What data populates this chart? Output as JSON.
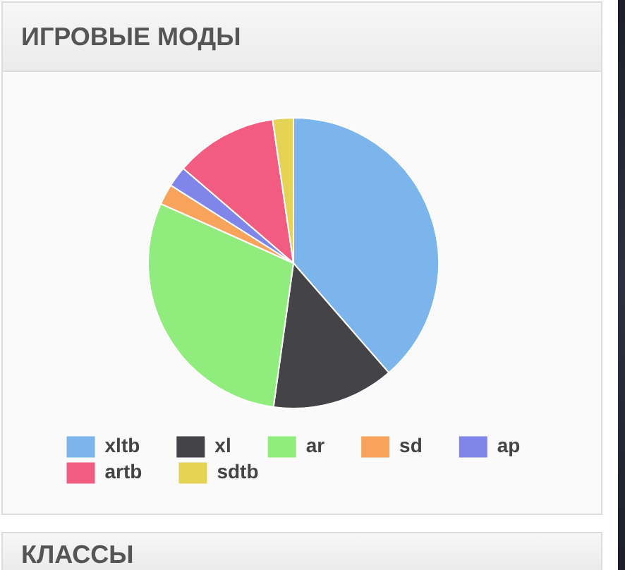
{
  "chart_data": [
    {
      "type": "pie",
      "title": "ИГРОВЫЕ МОДЫ",
      "categories": [
        "xltb",
        "xl",
        "ar",
        "sd",
        "ap",
        "artb",
        "sdtb"
      ],
      "values": [
        38.6,
        13.6,
        29.5,
        2.3,
        2.3,
        11.4,
        2.3
      ],
      "colors": [
        "#7cb5ec",
        "#434348",
        "#90ed7d",
        "#f7a35c",
        "#8085e9",
        "#f15c80",
        "#e4d354"
      ],
      "legend": "bottom"
    },
    {
      "type": "other",
      "title": "КЛАССЫ"
    }
  ]
}
